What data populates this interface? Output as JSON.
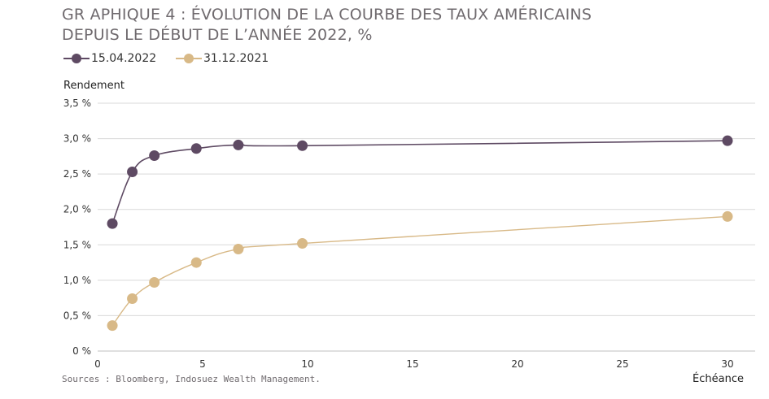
{
  "title_line1": "GR APHIQUE 4 : ÉVOLUTION DE LA COURBE DES TAUX AMÉRICAINS",
  "title_line2": "DEPUIS LE DÉBUT DE L’ANNÉE 2022, %",
  "source": "Sources : Bloomberg, Indosuez Wealth Management.",
  "chart_data": {
    "type": "line",
    "ylabel": "Rendement",
    "xlabel": "Échéance",
    "xlim": [
      0,
      31.5
    ],
    "ylim": [
      0,
      3.5
    ],
    "x_ticks": [
      0,
      5,
      10,
      15,
      20,
      25,
      30
    ],
    "x_tick_labels": [
      "0",
      "5",
      "10",
      "15",
      "20",
      "25",
      "30"
    ],
    "y_ticks": [
      0,
      0.5,
      1.0,
      1.5,
      2.0,
      2.5,
      3.0,
      3.5
    ],
    "y_tick_labels": [
      "0 %",
      "0,5 %",
      "1,0 %",
      "1,5 %",
      "2,0 %",
      "2,5 %",
      "3,0 %",
      "3,5 %"
    ],
    "grid": "horizontal",
    "legend_position": "top-left",
    "series": [
      {
        "name": "15.04.2022",
        "color": "#5e4a63",
        "x": [
          0.7,
          1.65,
          2.7,
          4.7,
          6.7,
          9.75,
          30
        ],
        "y": [
          1.8,
          2.53,
          2.76,
          2.86,
          2.91,
          2.9,
          2.97
        ]
      },
      {
        "name": "31.12.2021",
        "color": "#d8b987",
        "x": [
          0.7,
          1.65,
          2.7,
          4.7,
          6.7,
          9.75,
          30
        ],
        "y": [
          0.36,
          0.74,
          0.97,
          1.25,
          1.44,
          1.52,
          1.9
        ]
      }
    ]
  }
}
